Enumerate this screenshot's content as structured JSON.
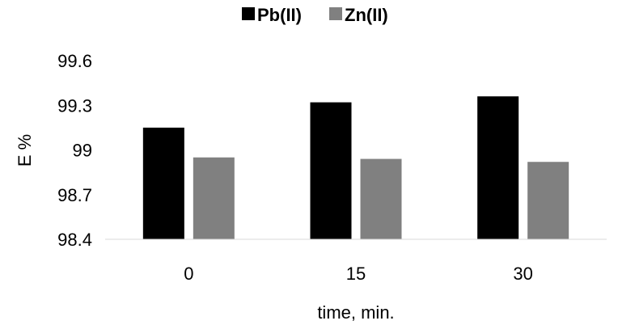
{
  "chart_data": {
    "type": "bar",
    "title": "",
    "xlabel": "time, min.",
    "ylabel": "E %",
    "categories": [
      "0",
      "15",
      "30"
    ],
    "ylim": [
      98.4,
      99.6
    ],
    "yticks": [
      "98.4",
      "98.7",
      "99",
      "99.3",
      "99.6"
    ],
    "grid": false,
    "legend_position": "top-center",
    "series": [
      {
        "name": "Pb(II)",
        "color": "#000000",
        "values": [
          99.15,
          99.32,
          99.36
        ]
      },
      {
        "name": "Zn(II)",
        "color": "#808080",
        "values": [
          98.95,
          98.94,
          98.92
        ]
      }
    ]
  }
}
